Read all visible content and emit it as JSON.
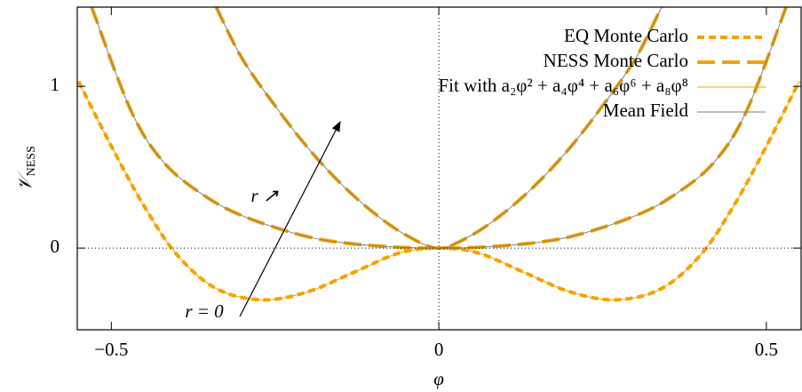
{
  "chart_data": {
    "type": "line",
    "xlabel": "φ",
    "ylabel": {
      "symbol": "𝒱",
      "subscript": "NESS"
    },
    "xlim": [
      -0.552,
      0.553
    ],
    "ylim": [
      -0.505,
      1.49
    ],
    "xticks": [
      {
        "value": -0.5,
        "label": "−0.5"
      },
      0,
      0.5
    ],
    "yticks": [
      0,
      1
    ],
    "zero_lines": true,
    "legend": "upper right",
    "annotations": [
      {
        "text": "r = 0"
      },
      {
        "text": "r ↗"
      }
    ],
    "series": [
      {
        "name": "EQ Monte Carlo",
        "color": "#f5a300",
        "width": 4,
        "dash": "8,5",
        "curves": [
          {
            "x": [
              -0.55,
              -0.5,
              -0.45,
              -0.4,
              -0.34,
              -0.27,
              -0.2,
              -0.13,
              -0.06,
              0,
              0.06,
              0.13,
              0.2,
              0.27,
              0.34,
              0.4,
              0.45,
              0.5,
              0.55
            ],
            "values": [
              1.03,
              0.63,
              0.26,
              -0.04,
              -0.25,
              -0.32,
              -0.27,
              -0.15,
              -0.03,
              0,
              -0.03,
              -0.15,
              -0.27,
              -0.32,
              -0.25,
              -0.04,
              0.26,
              0.63,
              1.03
            ]
          }
        ]
      },
      {
        "name": "NESS Monte Carlo",
        "color": "#f5a300",
        "width": 4,
        "dash": "20,8",
        "curves": [
          {
            "x": [
              -0.53,
              -0.47,
              -0.42,
              -0.36,
              -0.3,
              -0.21,
              -0.14,
              -0.06,
              0,
              0.06,
              0.14,
              0.21,
              0.3,
              0.36,
              0.42,
              0.47,
              0.53
            ],
            "values": [
              1.49,
              0.85,
              0.53,
              0.33,
              0.2,
              0.08,
              0.03,
              0.005,
              0,
              0.005,
              0.03,
              0.08,
              0.2,
              0.33,
              0.53,
              0.85,
              1.49
            ]
          },
          {
            "x": [
              -0.34,
              -0.3,
              -0.25,
              -0.2,
              -0.15,
              -0.1,
              -0.05,
              0,
              0.05,
              0.1,
              0.15,
              0.2,
              0.25,
              0.3,
              0.34
            ],
            "values": [
              1.49,
              1.17,
              0.88,
              0.62,
              0.4,
              0.22,
              0.08,
              0,
              0.08,
              0.22,
              0.4,
              0.62,
              0.88,
              1.17,
              1.49
            ]
          }
        ]
      },
      {
        "name": "Fit with a₂φ² + a₄φ⁴ + a₆φ⁶ + a₈φ⁸",
        "color": "#f5a300",
        "width": 1,
        "dash": "none",
        "curves": [
          {
            "x": [
              -0.55,
              -0.5,
              -0.45,
              -0.4,
              -0.34,
              -0.27,
              -0.2,
              -0.13,
              -0.06,
              0,
              0.06,
              0.13,
              0.2,
              0.27,
              0.34,
              0.4,
              0.45,
              0.5,
              0.55
            ],
            "values": [
              1.03,
              0.63,
              0.26,
              -0.04,
              -0.25,
              -0.32,
              -0.27,
              -0.15,
              -0.03,
              0,
              -0.03,
              -0.15,
              -0.27,
              -0.32,
              -0.25,
              -0.04,
              0.26,
              0.63,
              1.03
            ]
          }
        ]
      },
      {
        "name": "Mean Field",
        "color": "#808080",
        "width": 1,
        "dash": "none",
        "curves": [
          {
            "x": [
              -0.53,
              -0.47,
              -0.42,
              -0.36,
              -0.3,
              -0.21,
              -0.14,
              -0.06,
              0,
              0.06,
              0.14,
              0.21,
              0.3,
              0.36,
              0.42,
              0.47,
              0.53
            ],
            "values": [
              1.49,
              0.85,
              0.53,
              0.33,
              0.2,
              0.08,
              0.03,
              0.005,
              0,
              0.005,
              0.03,
              0.08,
              0.2,
              0.33,
              0.53,
              0.85,
              1.49
            ]
          },
          {
            "x": [
              -0.34,
              -0.3,
              -0.25,
              -0.2,
              -0.15,
              -0.1,
              -0.05,
              0,
              0.05,
              0.1,
              0.15,
              0.2,
              0.25,
              0.3,
              0.34
            ],
            "values": [
              1.49,
              1.17,
              0.88,
              0.62,
              0.4,
              0.22,
              0.08,
              0,
              0.08,
              0.22,
              0.4,
              0.62,
              0.88,
              1.17,
              1.49
            ]
          }
        ]
      }
    ]
  }
}
